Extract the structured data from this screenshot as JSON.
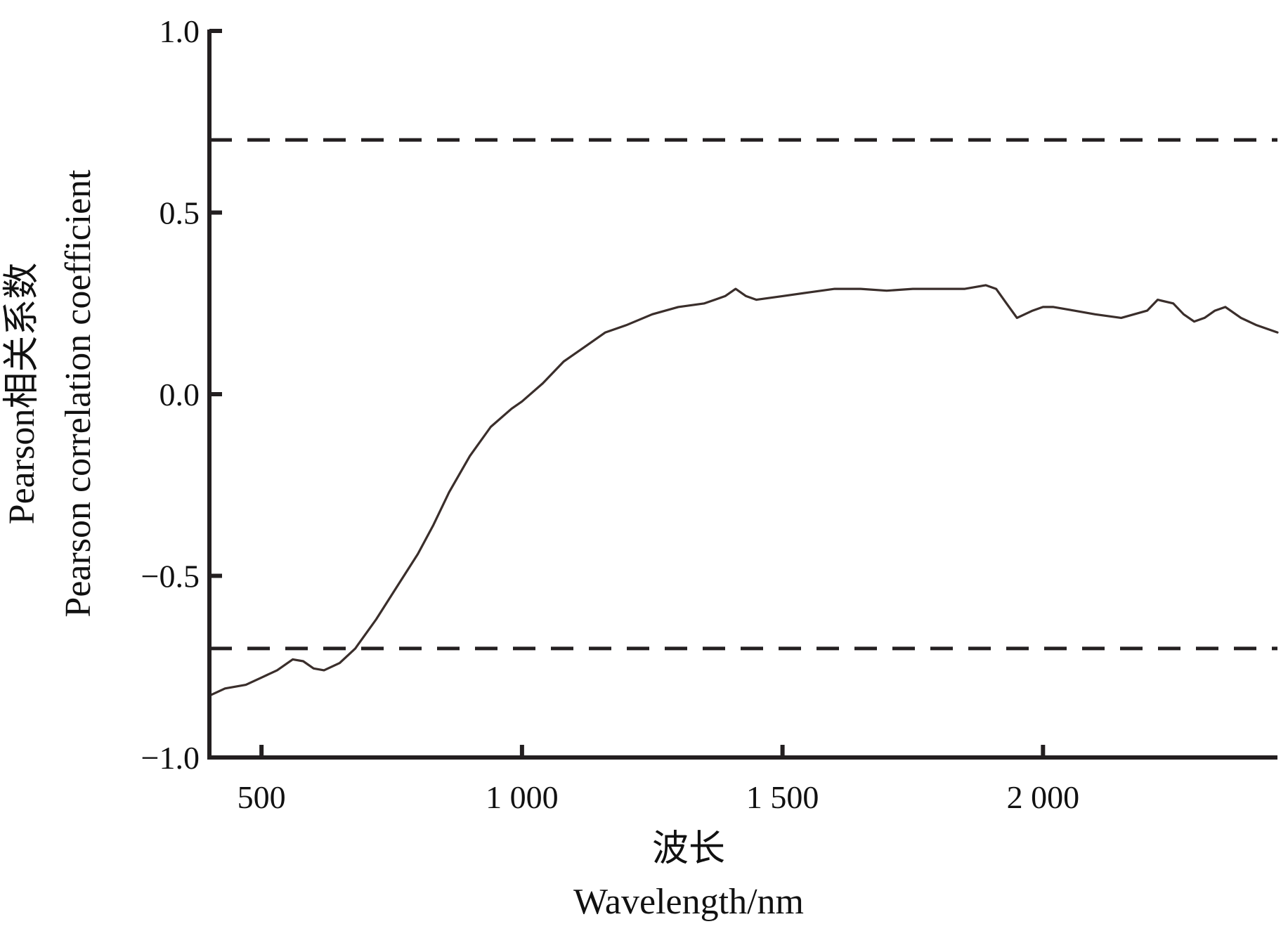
{
  "chart_data": {
    "type": "line",
    "title": "",
    "xlabel": [
      "波长",
      "Wavelength/nm"
    ],
    "ylabel": [
      "Pearson相关系数",
      "Pearson correlation coefficient"
    ],
    "xlim": [
      400,
      2450
    ],
    "ylim": [
      -1.0,
      1.0
    ],
    "grid": false,
    "legend": "none",
    "x_ticks": [
      {
        "value": 500,
        "label": "500"
      },
      {
        "value": 1000,
        "label": "1 000"
      },
      {
        "value": 1500,
        "label": "1 500"
      },
      {
        "value": 2000,
        "label": "2 000"
      }
    ],
    "y_ticks": [
      {
        "value": 1.0,
        "label": "1.0"
      },
      {
        "value": 0.5,
        "label": "0.5"
      },
      {
        "value": 0.0,
        "label": "0.0"
      },
      {
        "value": -0.5,
        "label": "−0.5"
      },
      {
        "value": -1.0,
        "label": "−1.0"
      }
    ],
    "reference_lines": [
      0.7,
      -0.7
    ],
    "colors": {
      "curve": "#3a2e2b",
      "axis": "#231f20",
      "reference": "#231f20"
    },
    "series": [
      {
        "x": [
          400,
          430,
          470,
          500,
          530,
          560,
          580,
          600,
          620,
          650,
          680,
          720,
          760,
          800,
          830,
          860,
          900,
          940,
          980,
          1000,
          1040,
          1080,
          1120,
          1160,
          1200,
          1250,
          1300,
          1350,
          1390,
          1410,
          1430,
          1450,
          1500,
          1550,
          1600,
          1650,
          1700,
          1750,
          1800,
          1850,
          1890,
          1910,
          1930,
          1950,
          1980,
          2000,
          2020,
          2060,
          2100,
          2150,
          2200,
          2220,
          2250,
          2270,
          2290,
          2310,
          2330,
          2350,
          2380,
          2410,
          2450
        ],
        "y": [
          -0.83,
          -0.81,
          -0.8,
          -0.78,
          -0.76,
          -0.73,
          -0.735,
          -0.755,
          -0.76,
          -0.74,
          -0.7,
          -0.62,
          -0.53,
          -0.44,
          -0.36,
          -0.27,
          -0.17,
          -0.09,
          -0.04,
          -0.02,
          0.03,
          0.09,
          0.13,
          0.17,
          0.19,
          0.22,
          0.24,
          0.25,
          0.27,
          0.29,
          0.27,
          0.26,
          0.27,
          0.28,
          0.29,
          0.29,
          0.285,
          0.29,
          0.29,
          0.29,
          0.3,
          0.29,
          0.25,
          0.21,
          0.23,
          0.24,
          0.24,
          0.23,
          0.22,
          0.21,
          0.23,
          0.26,
          0.25,
          0.22,
          0.2,
          0.21,
          0.23,
          0.24,
          0.21,
          0.19,
          0.17
        ]
      }
    ]
  }
}
